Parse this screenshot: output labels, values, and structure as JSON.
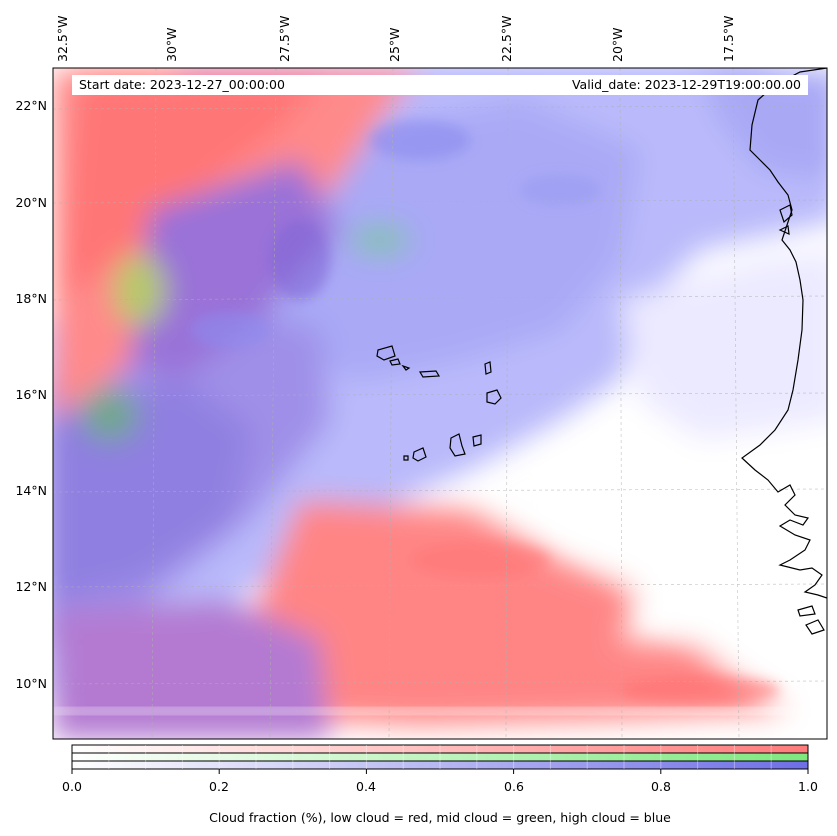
{
  "map": {
    "start_date_text": "Start date: 2023-12-27_00:00:00",
    "valid_date_text": "Valid_date: 2023-12-29T19:00:00.00",
    "longitude_labels": [
      "32.5°W",
      "30°W",
      "27.5°W",
      "25°W",
      "22.5°W",
      "20°W",
      "17.5°W"
    ],
    "latitude_labels": [
      "22°N",
      "20°N",
      "18°N",
      "16°N",
      "14°N",
      "12°N",
      "10°N"
    ],
    "gridlines": true,
    "colors": {
      "low_cloud": "#ff7a7a",
      "mid_cloud": "#8aea8a",
      "high_cloud": "#7b7bee",
      "coastline": "#000000"
    }
  },
  "colorbar": {
    "range": [
      0.0,
      1.0
    ],
    "tick_labels": [
      "0.0",
      "0.2",
      "0.4",
      "0.6",
      "0.8",
      "1.0"
    ],
    "label": "Cloud fraction (%), low cloud = red, mid cloud = green, high cloud = blue",
    "bands": [
      "low cloud",
      "mid cloud",
      "high cloud"
    ]
  }
}
